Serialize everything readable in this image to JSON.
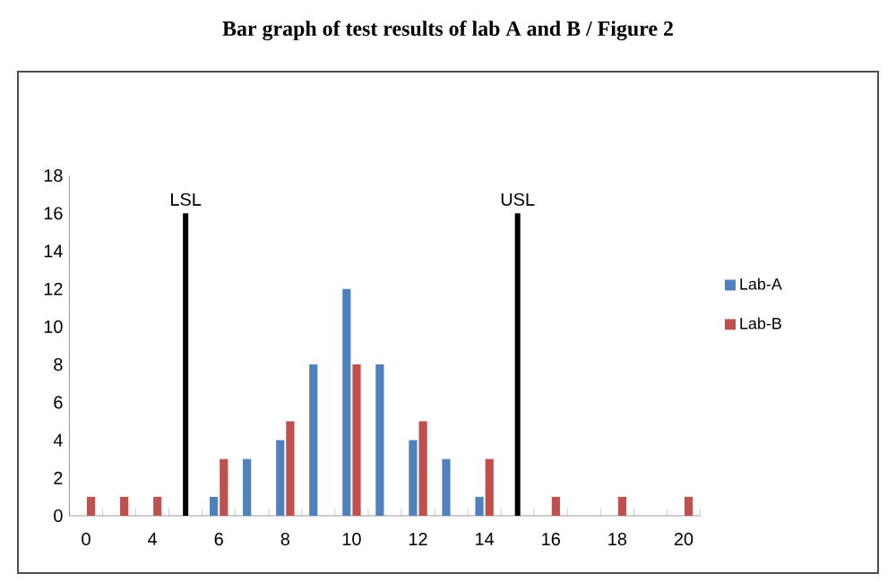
{
  "chart_data": {
    "type": "bar",
    "title": "Bar graph of test results of lab A and B / Figure 2",
    "categories": [
      "0",
      null,
      "4",
      null,
      "6",
      null,
      "8",
      null,
      "10",
      null,
      "12",
      null,
      "14",
      null,
      "16",
      null,
      "18",
      null,
      "20"
    ],
    "series": [
      {
        "name": "Lab-A",
        "color": "#4f81bd",
        "values": [
          null,
          null,
          null,
          null,
          1,
          3,
          4,
          8,
          12,
          8,
          4,
          3,
          1,
          null,
          null,
          null,
          null,
          null,
          null
        ]
      },
      {
        "name": "Lab-B",
        "color": "#c0504d",
        "values": [
          1,
          1,
          1,
          null,
          3,
          null,
          5,
          null,
          8,
          null,
          5,
          null,
          3,
          null,
          1,
          null,
          1,
          null,
          1
        ]
      },
      {
        "color": "#000000",
        "values": [
          null,
          null,
          null,
          16,
          null,
          null,
          null,
          null,
          null,
          null,
          null,
          null,
          null,
          16,
          null,
          null,
          null,
          null,
          null
        ]
      }
    ],
    "annotations": [
      {
        "text": "LSL",
        "y": 16
      },
      {
        "text": "USL",
        "y": 16
      }
    ],
    "ylim": [
      0,
      18
    ],
    "yticks": [
      0,
      2,
      4,
      6,
      8,
      10,
      12,
      14,
      16,
      18
    ],
    "legend": "right"
  }
}
